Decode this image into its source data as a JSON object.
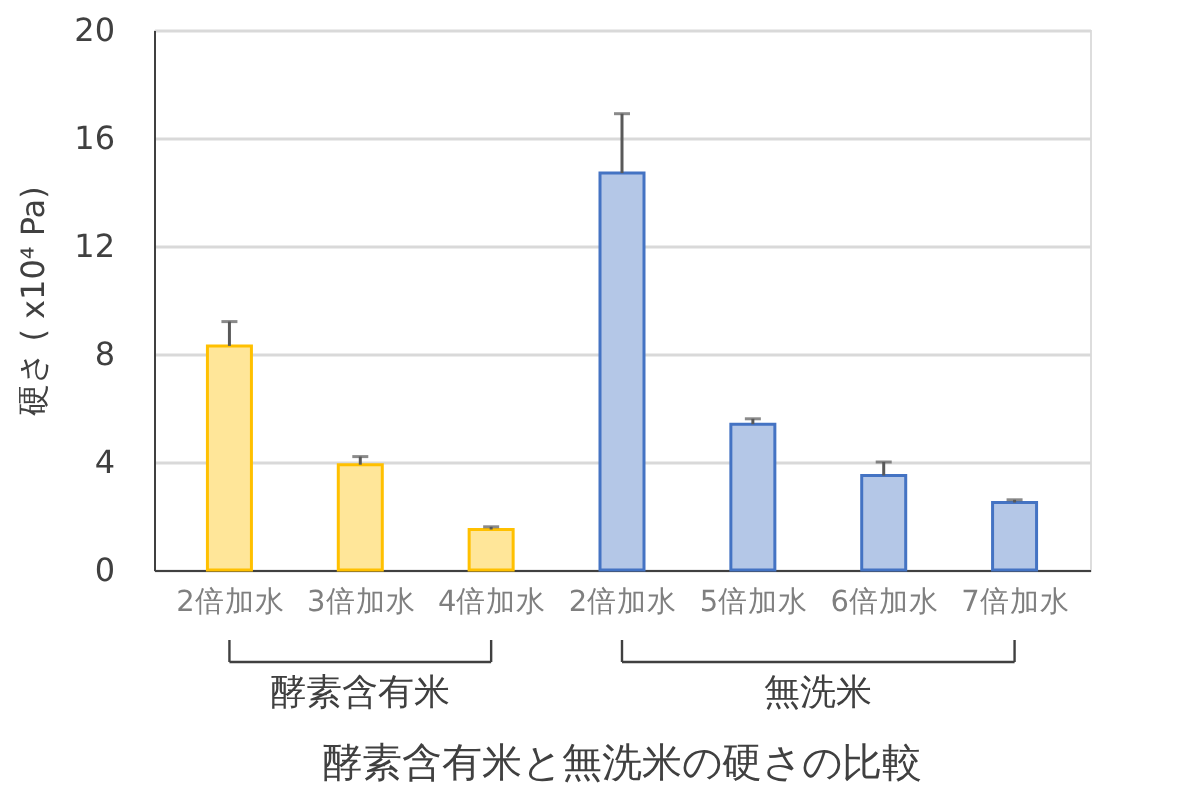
{
  "chart_data": {
    "type": "bar",
    "title": "酵素含有米と無洗米の硬さの比較",
    "ylabel": "硬さ ( x10⁴ Pa)",
    "categories": [
      "2倍加水",
      "3倍加水",
      "4倍加水",
      "2倍加水",
      "5倍加水",
      "6倍加水",
      "7倍加水"
    ],
    "series": [
      {
        "color": "#ffe699",
        "values": [
          8.3,
          3.9,
          1.5,
          null,
          null,
          null,
          null
        ],
        "errors": [
          [
            8.3,
            9.2
          ],
          [
            3.9,
            4.2
          ],
          [
            1.5,
            1.6
          ],
          null,
          null,
          null,
          null
        ]
      },
      {
        "color": "#b4c7e7",
        "values": [
          null,
          null,
          null,
          14.7,
          5.4,
          3.5,
          2.5
        ],
        "errors": [
          null,
          null,
          null,
          [
            14.7,
            16.9
          ],
          [
            5.4,
            5.6
          ],
          [
            3.5,
            4.0
          ],
          [
            2.5,
            2.6
          ]
        ]
      }
    ],
    "annotations": [
      "酵素含有米",
      "無洗米"
    ],
    "ylim": [
      0,
      20
    ],
    "yticks": [
      0,
      4,
      8,
      12,
      16,
      20
    ],
    "grid": "y"
  }
}
